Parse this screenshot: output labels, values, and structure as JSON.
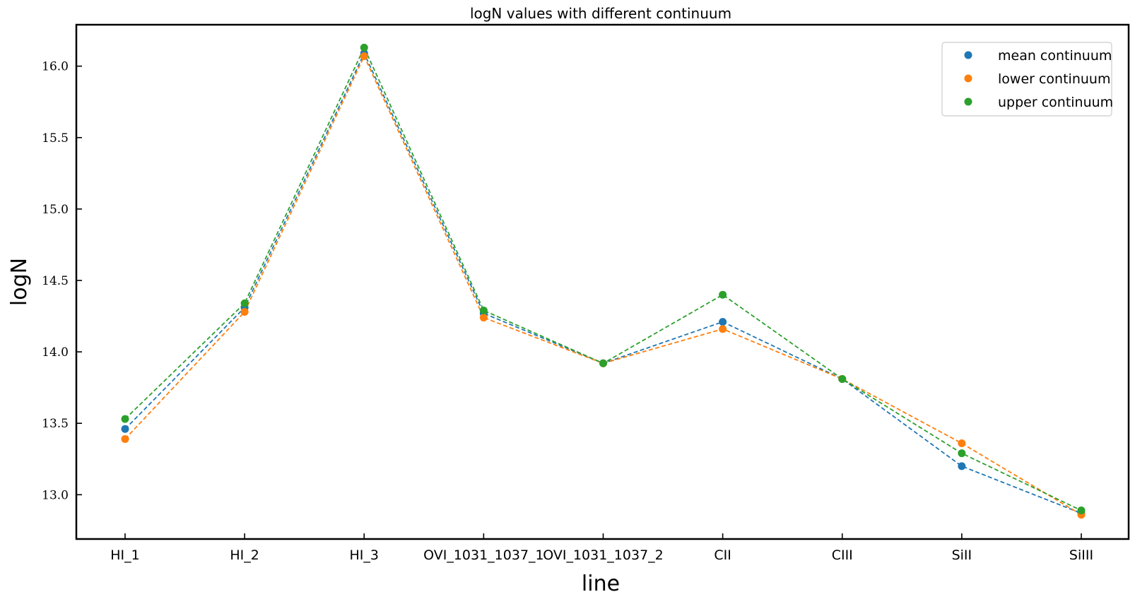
{
  "chart_data": {
    "type": "line",
    "title": "logN values with different continuum",
    "xlabel": "line",
    "ylabel": "logN",
    "categories": [
      "HI_1",
      "HI_2",
      "HI_3",
      "OVI_1031_1037_1",
      "OVI_1031_1037_2",
      "CII",
      "CIII",
      "SiII",
      "SiIII"
    ],
    "ylim": [
      12.69,
      16.29
    ],
    "yticks": [
      13.0,
      13.5,
      14.0,
      14.5,
      15.0,
      15.5,
      16.0
    ],
    "ytick_labels": [
      "13.0",
      "13.5",
      "14.0",
      "14.5",
      "15.0",
      "15.5",
      "16.0"
    ],
    "grid": false,
    "legend_position": "top-right",
    "line_style": "dashed",
    "series": [
      {
        "name": "mean continuum",
        "color": "#1f77b4",
        "values": [
          13.46,
          14.31,
          16.09,
          14.27,
          13.92,
          14.21,
          13.81,
          13.2,
          12.87
        ]
      },
      {
        "name": "lower continuum",
        "color": "#ff7f0e",
        "values": [
          13.39,
          14.28,
          16.07,
          14.24,
          13.92,
          14.16,
          13.81,
          13.36,
          12.86
        ]
      },
      {
        "name": "upper continuum",
        "color": "#2ca02c",
        "values": [
          13.53,
          14.34,
          16.13,
          14.29,
          13.92,
          14.4,
          13.81,
          13.29,
          12.89
        ]
      }
    ]
  }
}
